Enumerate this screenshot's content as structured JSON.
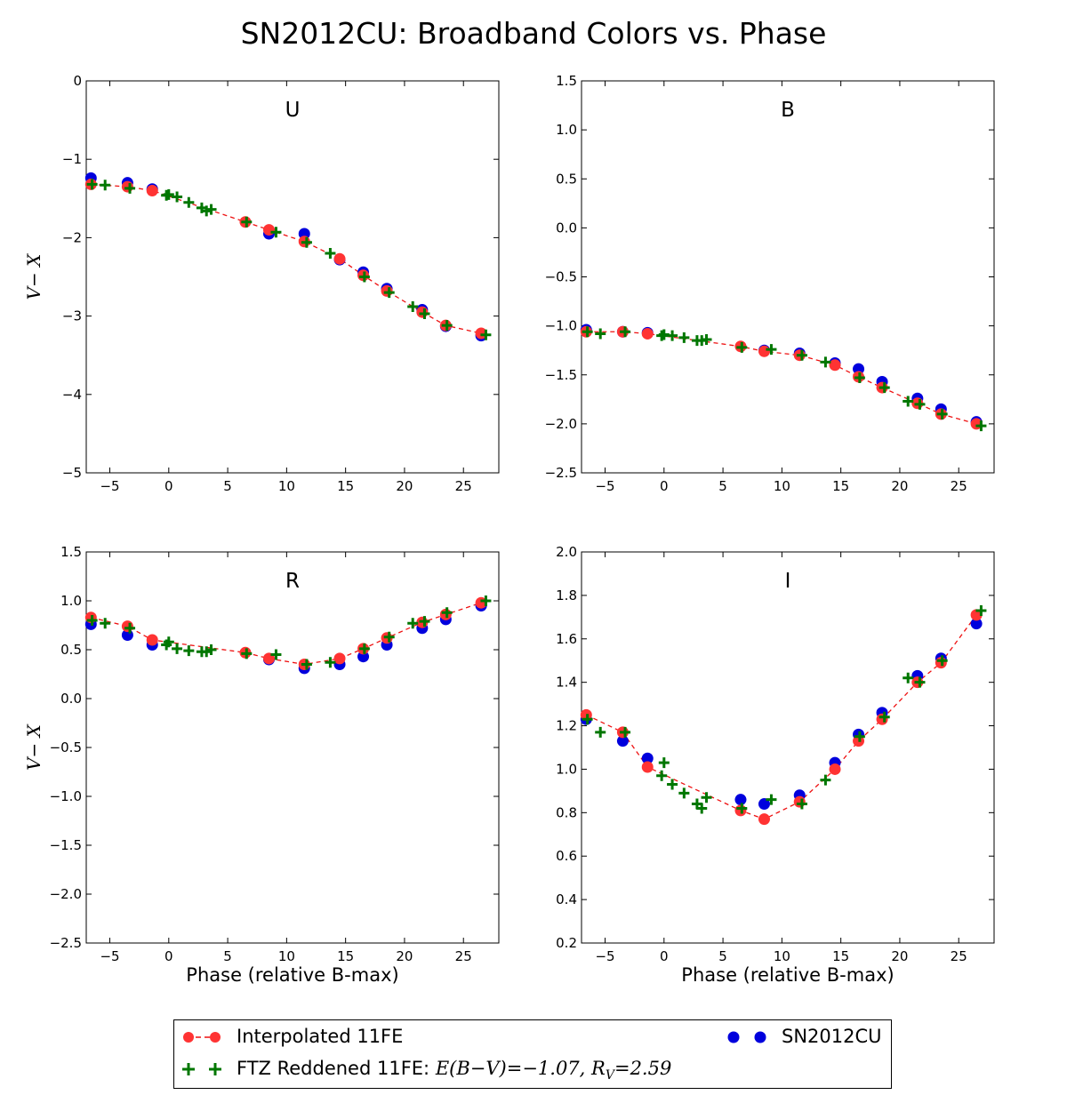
{
  "title": "SN2012CU: Broadband Colors vs. Phase",
  "colors": {
    "interp": "#ff3333",
    "sn": "#0000dd",
    "ftz": "#007700",
    "dash": "#ee1111"
  },
  "chart_data": [
    {
      "type": "scatter",
      "panel": "U",
      "xlim": [
        -7,
        28
      ],
      "ylim": [
        -5,
        0
      ],
      "xticks": [
        -5,
        0,
        5,
        10,
        15,
        20,
        25
      ],
      "yticks": [
        -5,
        -4,
        -3,
        -2,
        -1,
        0
      ],
      "ytick_labels": [
        "−5",
        "−4",
        "−3",
        "−2",
        "−1",
        "0"
      ],
      "ylabel": "V− X",
      "xlabel": "",
      "series": [
        {
          "name": "Interpolated 11FE",
          "x": [
            -6.6,
            -3.5,
            -1.4,
            6.5,
            8.5,
            11.5,
            14.5,
            16.5,
            18.5,
            21.5,
            23.5,
            26.5
          ],
          "y": [
            -1.32,
            -1.35,
            -1.4,
            -1.8,
            -1.9,
            -2.05,
            -2.27,
            -2.48,
            -2.68,
            -2.95,
            -3.12,
            -3.22
          ]
        },
        {
          "name": "SN2012CU",
          "x": [
            -6.6,
            -3.5,
            -1.4,
            8.5,
            11.5,
            14.5,
            16.5,
            18.5,
            21.5,
            23.5,
            26.5
          ],
          "y": [
            -1.24,
            -1.3,
            -1.38,
            -1.95,
            -1.95,
            -2.28,
            -2.44,
            -2.65,
            -2.92,
            -3.13,
            -3.25
          ]
        },
        {
          "name": "FTZ Reddened 11FE",
          "x": [
            -6.5,
            -5.4,
            -3.3,
            -0.2,
            0.0,
            0.7,
            1.7,
            2.8,
            3.2,
            3.6,
            6.6,
            9.1,
            11.7,
            13.7,
            16.6,
            18.7,
            20.7,
            21.7,
            23.6,
            26.9
          ],
          "y": [
            -1.32,
            -1.33,
            -1.37,
            -1.46,
            -1.45,
            -1.48,
            -1.55,
            -1.62,
            -1.66,
            -1.64,
            -1.8,
            -1.93,
            -2.06,
            -2.2,
            -2.5,
            -2.7,
            -2.88,
            -2.97,
            -3.12,
            -3.24
          ]
        }
      ]
    },
    {
      "type": "scatter",
      "panel": "B",
      "xlim": [
        -7,
        28
      ],
      "ylim": [
        -2.5,
        1.5
      ],
      "xticks": [
        -5,
        0,
        5,
        10,
        15,
        20,
        25
      ],
      "yticks": [
        -2.5,
        -2.0,
        -1.5,
        -1.0,
        -0.5,
        0.0,
        0.5,
        1.0,
        1.5
      ],
      "ytick_labels": [
        "−2.5",
        "−2.0",
        "−1.5",
        "−1.0",
        "−0.5",
        "0.0",
        "0.5",
        "1.0",
        "1.5"
      ],
      "ylabel": "",
      "xlabel": "",
      "series": [
        {
          "name": "Interpolated 11FE",
          "x": [
            -6.6,
            -3.5,
            -1.4,
            6.5,
            8.5,
            11.5,
            14.5,
            16.5,
            18.5,
            21.5,
            23.5,
            26.5
          ],
          "y": [
            -1.06,
            -1.06,
            -1.08,
            -1.21,
            -1.26,
            -1.3,
            -1.4,
            -1.52,
            -1.63,
            -1.79,
            -1.9,
            -2.0
          ]
        },
        {
          "name": "SN2012CU",
          "x": [
            -6.6,
            -3.5,
            -1.4,
            8.5,
            11.5,
            14.5,
            16.5,
            18.5,
            21.5,
            23.5,
            26.5
          ],
          "y": [
            -1.04,
            -1.06,
            -1.07,
            -1.25,
            -1.28,
            -1.38,
            -1.44,
            -1.57,
            -1.74,
            -1.85,
            -1.98
          ]
        },
        {
          "name": "FTZ Reddened 11FE",
          "x": [
            -6.5,
            -5.4,
            -3.3,
            -0.2,
            0.0,
            0.7,
            1.7,
            2.8,
            3.2,
            3.6,
            6.6,
            9.1,
            11.7,
            13.7,
            16.6,
            18.7,
            20.7,
            21.7,
            23.6,
            26.9
          ],
          "y": [
            -1.06,
            -1.08,
            -1.06,
            -1.1,
            -1.09,
            -1.1,
            -1.12,
            -1.15,
            -1.15,
            -1.14,
            -1.22,
            -1.24,
            -1.3,
            -1.37,
            -1.53,
            -1.63,
            -1.77,
            -1.8,
            -1.9,
            -2.02
          ]
        }
      ]
    },
    {
      "type": "scatter",
      "panel": "R",
      "xlim": [
        -7,
        28
      ],
      "ylim": [
        -2.5,
        1.5
      ],
      "xticks": [
        -5,
        0,
        5,
        10,
        15,
        20,
        25
      ],
      "yticks": [
        -2.5,
        -2.0,
        -1.5,
        -1.0,
        -0.5,
        0.0,
        0.5,
        1.0,
        1.5
      ],
      "ytick_labels": [
        "−2.5",
        "−2.0",
        "−1.5",
        "−1.0",
        "−0.5",
        "0.0",
        "0.5",
        "1.0",
        "1.5"
      ],
      "ylabel": "V− X",
      "xlabel": "Phase (relative B-max)",
      "series": [
        {
          "name": "Interpolated 11FE",
          "x": [
            -6.6,
            -3.5,
            -1.4,
            6.5,
            8.5,
            11.5,
            14.5,
            16.5,
            18.5,
            21.5,
            23.5,
            26.5
          ],
          "y": [
            0.83,
            0.74,
            0.6,
            0.47,
            0.41,
            0.35,
            0.41,
            0.51,
            0.62,
            0.78,
            0.86,
            0.98
          ]
        },
        {
          "name": "SN2012CU",
          "x": [
            -6.6,
            -3.5,
            -1.4,
            8.5,
            11.5,
            14.5,
            16.5,
            18.5,
            21.5,
            23.5,
            26.5
          ],
          "y": [
            0.76,
            0.65,
            0.55,
            0.4,
            0.31,
            0.35,
            0.43,
            0.55,
            0.72,
            0.81,
            0.95
          ]
        },
        {
          "name": "FTZ Reddened 11FE",
          "x": [
            -6.5,
            -5.4,
            -3.3,
            -0.2,
            0.0,
            0.7,
            1.7,
            2.8,
            3.2,
            3.6,
            6.6,
            9.1,
            11.7,
            13.7,
            16.6,
            18.7,
            20.7,
            21.7,
            23.6,
            26.9
          ],
          "y": [
            0.8,
            0.77,
            0.72,
            0.55,
            0.58,
            0.51,
            0.49,
            0.48,
            0.48,
            0.5,
            0.46,
            0.45,
            0.35,
            0.37,
            0.51,
            0.63,
            0.77,
            0.79,
            0.88,
            1.0
          ]
        }
      ]
    },
    {
      "type": "scatter",
      "panel": "I",
      "xlim": [
        -7,
        28
      ],
      "ylim": [
        0.2,
        2.0
      ],
      "xticks": [
        -5,
        0,
        5,
        10,
        15,
        20,
        25
      ],
      "yticks": [
        0.2,
        0.4,
        0.6,
        0.8,
        1.0,
        1.2,
        1.4,
        1.6,
        1.8,
        2.0
      ],
      "ytick_labels": [
        "0.2",
        "0.4",
        "0.6",
        "0.8",
        "1.0",
        "1.2",
        "1.4",
        "1.6",
        "1.8",
        "2.0"
      ],
      "ylabel": "",
      "xlabel": "Phase (relative B-max)",
      "series": [
        {
          "name": "Interpolated 11FE",
          "x": [
            -6.6,
            -3.5,
            -1.4,
            6.5,
            8.5,
            11.5,
            14.5,
            16.5,
            18.5,
            21.5,
            23.5,
            26.5
          ],
          "y": [
            1.25,
            1.17,
            1.01,
            0.81,
            0.77,
            0.85,
            1.0,
            1.13,
            1.23,
            1.4,
            1.49,
            1.71
          ]
        },
        {
          "name": "SN2012CU",
          "x": [
            -6.6,
            -3.5,
            -1.4,
            6.5,
            8.5,
            11.5,
            14.5,
            16.5,
            18.5,
            21.5,
            23.5,
            26.5
          ],
          "y": [
            1.23,
            1.13,
            1.05,
            0.86,
            0.84,
            0.88,
            1.03,
            1.16,
            1.26,
            1.43,
            1.51,
            1.67
          ]
        },
        {
          "name": "FTZ Reddened 11FE",
          "x": [
            -6.5,
            -5.4,
            -3.3,
            -0.2,
            0.0,
            0.7,
            1.7,
            2.8,
            3.2,
            3.6,
            6.6,
            9.1,
            11.7,
            13.7,
            16.6,
            18.7,
            20.7,
            21.7,
            23.6,
            26.9
          ],
          "y": [
            1.23,
            1.17,
            1.17,
            0.97,
            1.03,
            0.93,
            0.89,
            0.84,
            0.82,
            0.87,
            0.82,
            0.86,
            0.84,
            0.95,
            1.15,
            1.24,
            1.42,
            1.4,
            1.5,
            1.73
          ]
        }
      ]
    }
  ],
  "legend": {
    "interp_label": "Interpolated 11FE",
    "sn_label": "SN2012CU",
    "ftz_label_prefix": "FTZ Reddened 11FE: ",
    "ftz_math": "E(B−V)=−1.07, R",
    "ftz_math_sub": "V",
    "ftz_math_tail": "=2.59"
  }
}
